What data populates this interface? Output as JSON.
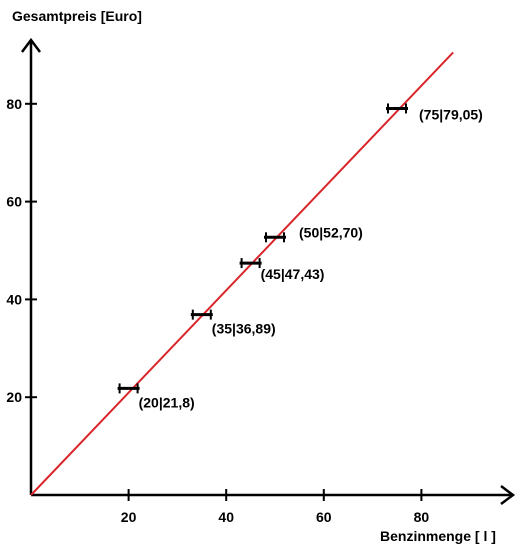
{
  "chart_data": {
    "type": "scatter",
    "title": "",
    "ylabel": "Gesamtpreis [Euro]",
    "xlabel": "Benzinmenge [ l ]",
    "xlim": [
      0,
      100
    ],
    "ylim": [
      0,
      95
    ],
    "x_ticks": [
      20,
      40,
      60,
      80
    ],
    "y_ticks": [
      20,
      40,
      60,
      80
    ],
    "grid": false,
    "points": [
      {
        "x": 20,
        "y": 21.8,
        "label": "(20|21,8)"
      },
      {
        "x": 35,
        "y": 36.89,
        "label": "(35|36,89)"
      },
      {
        "x": 45,
        "y": 47.43,
        "label": "(45|47,43)"
      },
      {
        "x": 50,
        "y": 52.7,
        "label": "(50|52,70)"
      },
      {
        "x": 75,
        "y": 79.05,
        "label": "(75|79,05)"
      }
    ],
    "trend_line": {
      "from": [
        0,
        0
      ],
      "to": [
        86.5,
        90.5
      ]
    },
    "colors": {
      "trend_line": "#d9262b",
      "axes": "#000000",
      "markers": "#000000"
    }
  }
}
